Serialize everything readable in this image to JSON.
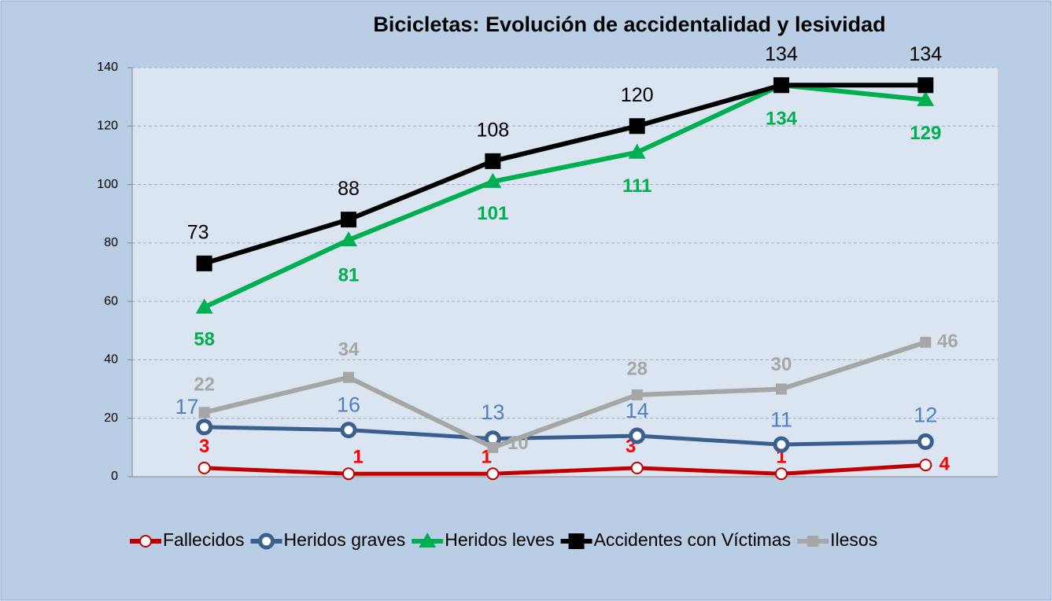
{
  "chart_data": {
    "type": "line",
    "title": "Bicicletas: Evolución de accidentalidad y lesividad",
    "ylim": [
      0,
      140
    ],
    "yticks": [
      0,
      20,
      40,
      60,
      80,
      100,
      120,
      140
    ],
    "grid": true,
    "legend": "bottom",
    "series": [
      {
        "name": "Fallecidos",
        "color": "#c00000",
        "values": [
          3,
          1,
          1,
          3,
          1,
          4
        ]
      },
      {
        "name": "Heridos graves",
        "color": "#3b5f8f",
        "values": [
          17,
          16,
          13,
          14,
          11,
          12
        ]
      },
      {
        "name": "Heridos leves",
        "color": "#00b050",
        "values": [
          58,
          81,
          101,
          111,
          134,
          129
        ]
      },
      {
        "name": "Accidentes con Víctimas",
        "color": "#000000",
        "values": [
          73,
          88,
          108,
          120,
          134,
          134
        ]
      },
      {
        "name": "Ilesos",
        "color": "#a6a6a6",
        "values": [
          22,
          34,
          10,
          28,
          30,
          46
        ]
      }
    ]
  }
}
